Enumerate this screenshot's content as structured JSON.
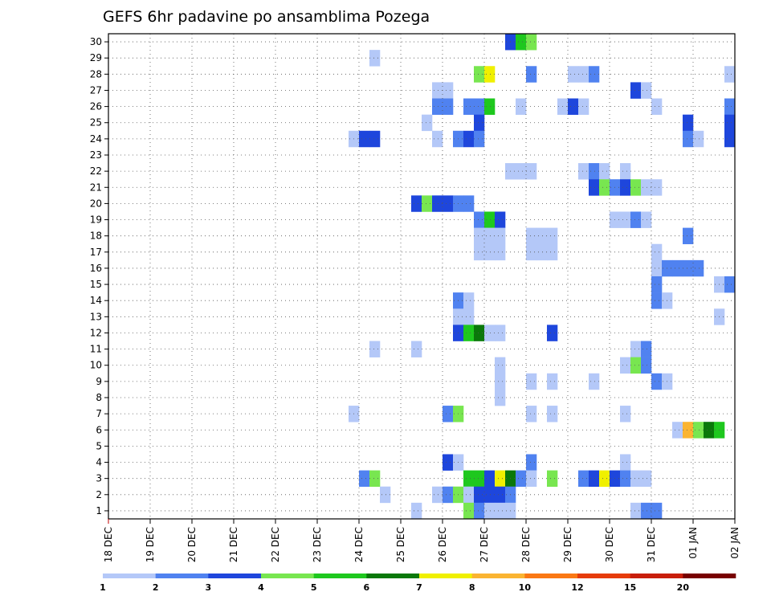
{
  "chart_data": {
    "type": "heatmap",
    "title": "GEFS 6hr padavine po ansamblima Pozega",
    "x_labels": [
      "18 DEC",
      "19 DEC",
      "20 DEC",
      "21 DEC",
      "22 DEC",
      "23 DEC",
      "24 DEC",
      "25 DEC",
      "26 DEC",
      "27 DEC",
      "28 DEC",
      "29 DEC",
      "30 DEC",
      "31 DEC",
      "01 JAN",
      "02 JAN"
    ],
    "y_labels": [
      "1",
      "2",
      "3",
      "4",
      "5",
      "6",
      "7",
      "8",
      "9",
      "10",
      "11",
      "12",
      "13",
      "14",
      "15",
      "16",
      "17",
      "18",
      "19",
      "20",
      "21",
      "22",
      "23",
      "24",
      "25",
      "26",
      "27",
      "28",
      "29",
      "30"
    ],
    "x_unit": "6-hour steps from 18 DEC 00Z",
    "xlim": [
      0,
      60
    ],
    "ylim": [
      0.5,
      30.5
    ],
    "grid": true,
    "colorbar": {
      "levels": [
        "1",
        "2",
        "3",
        "4",
        "5",
        "6",
        "7",
        "8",
        "10",
        "12",
        "15",
        "20"
      ],
      "colors": [
        "#b4c8f8",
        "#5082f0",
        "#1e46dc",
        "#78e650",
        "#1ec81e",
        "#0a780a",
        "#f0f000",
        "#fab432",
        "#fa7814",
        "#e63c0a",
        "#c81e0a",
        "#780000"
      ]
    },
    "cells": [
      {
        "m": 30,
        "t": 38.5,
        "c": 3
      },
      {
        "m": 30,
        "t": 39.5,
        "c": 5
      },
      {
        "m": 30,
        "t": 40.5,
        "c": 4
      },
      {
        "m": 29,
        "t": 25.5,
        "c": 1
      },
      {
        "m": 28,
        "t": 35.5,
        "c": 4
      },
      {
        "m": 28,
        "t": 36.5,
        "c": 7
      },
      {
        "m": 28,
        "t": 40.5,
        "c": 2
      },
      {
        "m": 28,
        "t": 44.5,
        "c": 1
      },
      {
        "m": 28,
        "t": 45.5,
        "c": 1
      },
      {
        "m": 28,
        "t": 46.5,
        "c": 2
      },
      {
        "m": 28,
        "t": 59.5,
        "c": 1
      },
      {
        "m": 27,
        "t": 31.5,
        "c": 1
      },
      {
        "m": 27,
        "t": 32.5,
        "c": 1
      },
      {
        "m": 27,
        "t": 50.5,
        "c": 3
      },
      {
        "m": 27,
        "t": 51.5,
        "c": 1
      },
      {
        "m": 26,
        "t": 31.5,
        "c": 2
      },
      {
        "m": 26,
        "t": 32.5,
        "c": 2
      },
      {
        "m": 26,
        "t": 34.5,
        "c": 2
      },
      {
        "m": 26,
        "t": 35.5,
        "c": 2
      },
      {
        "m": 26,
        "t": 36.5,
        "c": 5
      },
      {
        "m": 26,
        "t": 39.5,
        "c": 1
      },
      {
        "m": 26,
        "t": 43.5,
        "c": 1
      },
      {
        "m": 26,
        "t": 44.5,
        "c": 3
      },
      {
        "m": 26,
        "t": 45.5,
        "c": 1
      },
      {
        "m": 26,
        "t": 52.5,
        "c": 1
      },
      {
        "m": 26,
        "t": 59.5,
        "c": 2
      },
      {
        "m": 25,
        "t": 30.5,
        "c": 1
      },
      {
        "m": 25,
        "t": 35.5,
        "c": 3
      },
      {
        "m": 25,
        "t": 55.5,
        "c": 3
      },
      {
        "m": 25,
        "t": 59.5,
        "c": 3
      },
      {
        "m": 24,
        "t": 23.5,
        "c": 1
      },
      {
        "m": 24,
        "t": 24.5,
        "c": 3
      },
      {
        "m": 24,
        "t": 25.5,
        "c": 3
      },
      {
        "m": 24,
        "t": 31.5,
        "c": 1
      },
      {
        "m": 24,
        "t": 33.5,
        "c": 2
      },
      {
        "m": 24,
        "t": 34.5,
        "c": 3
      },
      {
        "m": 24,
        "t": 35.5,
        "c": 2
      },
      {
        "m": 24,
        "t": 55.5,
        "c": 2
      },
      {
        "m": 24,
        "t": 56.5,
        "c": 1
      },
      {
        "m": 24,
        "t": 59.5,
        "c": 3
      },
      {
        "m": 22,
        "t": 38.5,
        "c": 1
      },
      {
        "m": 22,
        "t": 39.5,
        "c": 1
      },
      {
        "m": 22,
        "t": 40.5,
        "c": 1
      },
      {
        "m": 22,
        "t": 45.5,
        "c": 1
      },
      {
        "m": 22,
        "t": 46.5,
        "c": 2
      },
      {
        "m": 22,
        "t": 47.5,
        "c": 1
      },
      {
        "m": 22,
        "t": 49.5,
        "c": 1
      },
      {
        "m": 21,
        "t": 46.5,
        "c": 3
      },
      {
        "m": 21,
        "t": 47.5,
        "c": 4
      },
      {
        "m": 21,
        "t": 48.5,
        "c": 2
      },
      {
        "m": 21,
        "t": 49.5,
        "c": 3
      },
      {
        "m": 21,
        "t": 50.5,
        "c": 4
      },
      {
        "m": 21,
        "t": 51.5,
        "c": 1
      },
      {
        "m": 21,
        "t": 52.5,
        "c": 1
      },
      {
        "m": 20,
        "t": 29.5,
        "c": 3
      },
      {
        "m": 20,
        "t": 30.5,
        "c": 4
      },
      {
        "m": 20,
        "t": 31.5,
        "c": 3
      },
      {
        "m": 20,
        "t": 32.5,
        "c": 3
      },
      {
        "m": 20,
        "t": 33.5,
        "c": 2
      },
      {
        "m": 20,
        "t": 34.5,
        "c": 2
      },
      {
        "m": 19,
        "t": 35.5,
        "c": 2
      },
      {
        "m": 19,
        "t": 36.5,
        "c": 5
      },
      {
        "m": 19,
        "t": 37.5,
        "c": 3
      },
      {
        "m": 19,
        "t": 48.5,
        "c": 1
      },
      {
        "m": 19,
        "t": 49.5,
        "c": 1
      },
      {
        "m": 19,
        "t": 50.5,
        "c": 2
      },
      {
        "m": 19,
        "t": 51.5,
        "c": 1
      },
      {
        "m": 18,
        "t": 35.5,
        "c": 1
      },
      {
        "m": 18,
        "t": 36.5,
        "c": 1
      },
      {
        "m": 18,
        "t": 37.5,
        "c": 1
      },
      {
        "m": 18,
        "t": 40.5,
        "c": 1
      },
      {
        "m": 18,
        "t": 41.5,
        "c": 1
      },
      {
        "m": 18,
        "t": 42.5,
        "c": 1
      },
      {
        "m": 18,
        "t": 55.5,
        "c": 2
      },
      {
        "m": 17,
        "t": 35.5,
        "c": 1
      },
      {
        "m": 17,
        "t": 36.5,
        "c": 1
      },
      {
        "m": 17,
        "t": 37.5,
        "c": 1
      },
      {
        "m": 17,
        "t": 40.5,
        "c": 1
      },
      {
        "m": 17,
        "t": 41.5,
        "c": 1
      },
      {
        "m": 17,
        "t": 42.5,
        "c": 1
      },
      {
        "m": 17,
        "t": 52.5,
        "c": 1
      },
      {
        "m": 16,
        "t": 52.5,
        "c": 1
      },
      {
        "m": 16,
        "t": 53.5,
        "c": 2
      },
      {
        "m": 16,
        "t": 54.5,
        "c": 2
      },
      {
        "m": 16,
        "t": 55.5,
        "c": 2
      },
      {
        "m": 16,
        "t": 56.5,
        "c": 2
      },
      {
        "m": 15,
        "t": 52.5,
        "c": 2
      },
      {
        "m": 15,
        "t": 58.5,
        "c": 1
      },
      {
        "m": 15,
        "t": 59.5,
        "c": 2
      },
      {
        "m": 14,
        "t": 33.5,
        "c": 2
      },
      {
        "m": 14,
        "t": 34.5,
        "c": 1
      },
      {
        "m": 14,
        "t": 52.5,
        "c": 2
      },
      {
        "m": 14,
        "t": 53.5,
        "c": 1
      },
      {
        "m": 13,
        "t": 33.5,
        "c": 1
      },
      {
        "m": 13,
        "t": 34.5,
        "c": 1
      },
      {
        "m": 13,
        "t": 58.5,
        "c": 1
      },
      {
        "m": 12,
        "t": 33.5,
        "c": 3
      },
      {
        "m": 12,
        "t": 34.5,
        "c": 5
      },
      {
        "m": 12,
        "t": 35.5,
        "c": 6
      },
      {
        "m": 12,
        "t": 36.5,
        "c": 1
      },
      {
        "m": 12,
        "t": 37.5,
        "c": 1
      },
      {
        "m": 12,
        "t": 42.5,
        "c": 3
      },
      {
        "m": 11,
        "t": 25.5,
        "c": 1
      },
      {
        "m": 11,
        "t": 29.5,
        "c": 1
      },
      {
        "m": 11,
        "t": 50.5,
        "c": 1
      },
      {
        "m": 11,
        "t": 51.5,
        "c": 2
      },
      {
        "m": 10,
        "t": 37.5,
        "c": 1
      },
      {
        "m": 10,
        "t": 49.5,
        "c": 1
      },
      {
        "m": 10,
        "t": 50.5,
        "c": 4
      },
      {
        "m": 10,
        "t": 51.5,
        "c": 2
      },
      {
        "m": 9,
        "t": 37.5,
        "c": 1
      },
      {
        "m": 9,
        "t": 40.5,
        "c": 1
      },
      {
        "m": 9,
        "t": 42.5,
        "c": 1
      },
      {
        "m": 9,
        "t": 46.5,
        "c": 1
      },
      {
        "m": 9,
        "t": 52.5,
        "c": 2
      },
      {
        "m": 9,
        "t": 53.5,
        "c": 1
      },
      {
        "m": 8,
        "t": 37.5,
        "c": 1
      },
      {
        "m": 7,
        "t": 23.5,
        "c": 1
      },
      {
        "m": 7,
        "t": 32.5,
        "c": 2
      },
      {
        "m": 7,
        "t": 33.5,
        "c": 4
      },
      {
        "m": 7,
        "t": 40.5,
        "c": 1
      },
      {
        "m": 7,
        "t": 42.5,
        "c": 1
      },
      {
        "m": 7,
        "t": 49.5,
        "c": 1
      },
      {
        "m": 6,
        "t": 54.5,
        "c": 1
      },
      {
        "m": 6,
        "t": 55.5,
        "c": 8
      },
      {
        "m": 6,
        "t": 56.5,
        "c": 4
      },
      {
        "m": 6,
        "t": 57.5,
        "c": 6
      },
      {
        "m": 6,
        "t": 58.5,
        "c": 5
      },
      {
        "m": 4,
        "t": 32.5,
        "c": 3
      },
      {
        "m": 4,
        "t": 33.5,
        "c": 1
      },
      {
        "m": 4,
        "t": 40.5,
        "c": 2
      },
      {
        "m": 4,
        "t": 49.5,
        "c": 1
      },
      {
        "m": 3,
        "t": 24.5,
        "c": 2
      },
      {
        "m": 3,
        "t": 25.5,
        "c": 4
      },
      {
        "m": 3,
        "t": 34.5,
        "c": 5
      },
      {
        "m": 3,
        "t": 35.5,
        "c": 5
      },
      {
        "m": 3,
        "t": 36.5,
        "c": 3
      },
      {
        "m": 3,
        "t": 37.5,
        "c": 7
      },
      {
        "m": 3,
        "t": 38.5,
        "c": 6
      },
      {
        "m": 3,
        "t": 39.5,
        "c": 2
      },
      {
        "m": 3,
        "t": 40.5,
        "c": 1
      },
      {
        "m": 3,
        "t": 42.5,
        "c": 4
      },
      {
        "m": 3,
        "t": 45.5,
        "c": 2
      },
      {
        "m": 3,
        "t": 46.5,
        "c": 3
      },
      {
        "m": 3,
        "t": 47.5,
        "c": 7
      },
      {
        "m": 3,
        "t": 48.5,
        "c": 3
      },
      {
        "m": 3,
        "t": 49.5,
        "c": 2
      },
      {
        "m": 3,
        "t": 50.5,
        "c": 1
      },
      {
        "m": 3,
        "t": 51.5,
        "c": 1
      },
      {
        "m": 2,
        "t": 26.5,
        "c": 1
      },
      {
        "m": 2,
        "t": 31.5,
        "c": 1
      },
      {
        "m": 2,
        "t": 32.5,
        "c": 2
      },
      {
        "m": 2,
        "t": 33.5,
        "c": 4
      },
      {
        "m": 2,
        "t": 34.5,
        "c": 1
      },
      {
        "m": 2,
        "t": 35.5,
        "c": 3
      },
      {
        "m": 2,
        "t": 36.5,
        "c": 3
      },
      {
        "m": 2,
        "t": 37.5,
        "c": 3
      },
      {
        "m": 2,
        "t": 38.5,
        "c": 2
      },
      {
        "m": 1,
        "t": 29.5,
        "c": 1
      },
      {
        "m": 1,
        "t": 34.5,
        "c": 4
      },
      {
        "m": 1,
        "t": 35.5,
        "c": 2
      },
      {
        "m": 1,
        "t": 36.5,
        "c": 1
      },
      {
        "m": 1,
        "t": 37.5,
        "c": 1
      },
      {
        "m": 1,
        "t": 38.5,
        "c": 1
      },
      {
        "m": 1,
        "t": 50.5,
        "c": 1
      },
      {
        "m": 1,
        "t": 51.5,
        "c": 2
      },
      {
        "m": 1,
        "t": 52.5,
        "c": 2
      }
    ]
  }
}
